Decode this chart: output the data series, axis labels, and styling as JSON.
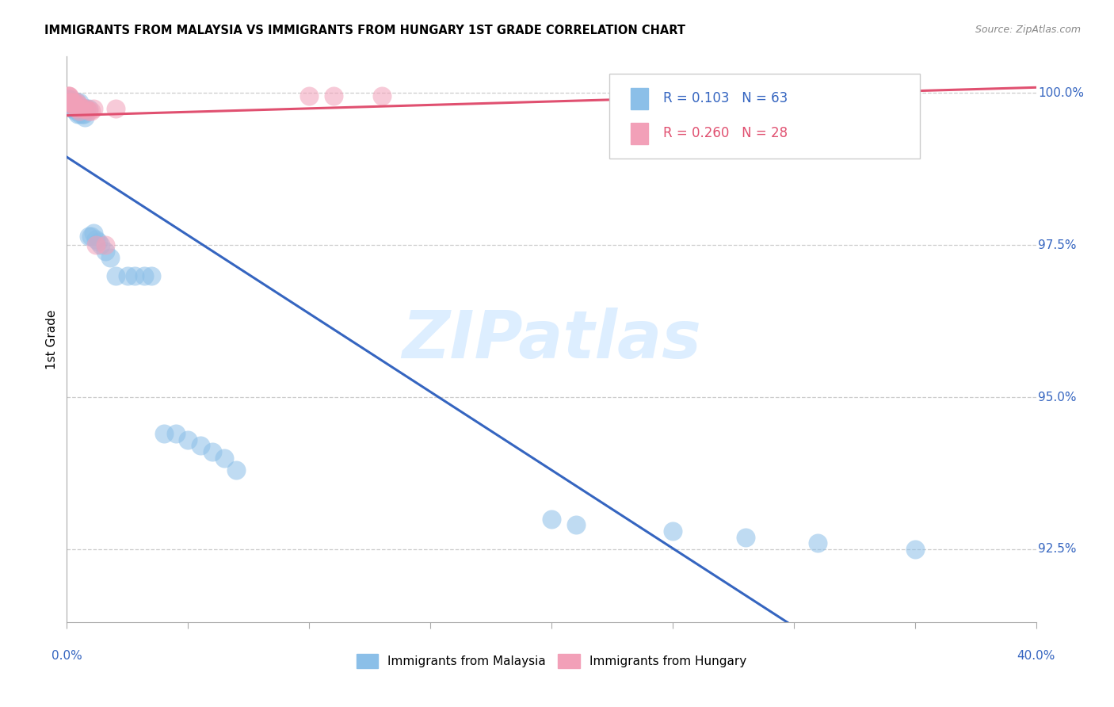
{
  "title": "IMMIGRANTS FROM MALAYSIA VS IMMIGRANTS FROM HUNGARY 1ST GRADE CORRELATION CHART",
  "source": "Source: ZipAtlas.com",
  "ylabel": "1st Grade",
  "y_tick_labels": [
    "100.0%",
    "97.5%",
    "95.0%",
    "92.5%"
  ],
  "y_tick_vals": [
    1.0,
    0.975,
    0.95,
    0.925
  ],
  "x_range": [
    0.0,
    0.4
  ],
  "y_range": [
    0.913,
    1.006
  ],
  "r_malaysia": "0.103",
  "n_malaysia": "63",
  "r_hungary": "0.260",
  "n_hungary": "28",
  "malaysia_scatter_color": "#8BBFE8",
  "malaysia_line_color": "#3565C0",
  "hungary_scatter_color": "#F2A0B8",
  "hungary_line_color": "#E05070",
  "watermark_color": "#DDEEFF",
  "grid_color": "#CCCCCC",
  "bg_color": "#FFFFFF",
  "malaysia_x": [
    0.0005,
    0.0007,
    0.001,
    0.001,
    0.0012,
    0.0013,
    0.0014,
    0.0015,
    0.0015,
    0.002,
    0.002,
    0.0022,
    0.0023,
    0.0025,
    0.0025,
    0.003,
    0.003,
    0.003,
    0.0032,
    0.0035,
    0.004,
    0.004,
    0.004,
    0.0042,
    0.0045,
    0.005,
    0.005,
    0.005,
    0.0055,
    0.006,
    0.006,
    0.0065,
    0.007,
    0.007,
    0.0075,
    0.008,
    0.009,
    0.009,
    0.01,
    0.011,
    0.012,
    0.013,
    0.014,
    0.016,
    0.018,
    0.02,
    0.025,
    0.028,
    0.032,
    0.035,
    0.04,
    0.045,
    0.05,
    0.055,
    0.06,
    0.065,
    0.07,
    0.2,
    0.21,
    0.25,
    0.28,
    0.31,
    0.35
  ],
  "malaysia_y": [
    0.999,
    0.999,
    0.999,
    0.9985,
    0.9985,
    0.9985,
    0.9985,
    0.9985,
    0.998,
    0.999,
    0.9985,
    0.998,
    0.998,
    0.9975,
    0.9975,
    0.9985,
    0.998,
    0.9975,
    0.9975,
    0.997,
    0.9985,
    0.998,
    0.9975,
    0.9975,
    0.9965,
    0.9985,
    0.9975,
    0.997,
    0.9965,
    0.9975,
    0.997,
    0.9965,
    0.9975,
    0.9965,
    0.996,
    0.9975,
    0.9975,
    0.9765,
    0.9765,
    0.977,
    0.976,
    0.9755,
    0.975,
    0.974,
    0.973,
    0.97,
    0.97,
    0.97,
    0.97,
    0.97,
    0.944,
    0.944,
    0.943,
    0.942,
    0.941,
    0.94,
    0.938,
    0.93,
    0.929,
    0.928,
    0.927,
    0.926,
    0.925
  ],
  "hungary_x": [
    0.0005,
    0.0007,
    0.001,
    0.001,
    0.0012,
    0.0015,
    0.002,
    0.002,
    0.0025,
    0.003,
    0.003,
    0.004,
    0.004,
    0.005,
    0.005,
    0.006,
    0.007,
    0.008,
    0.009,
    0.01,
    0.011,
    0.012,
    0.016,
    0.02,
    0.1,
    0.11,
    0.13,
    0.32
  ],
  "hungary_y": [
    0.9995,
    0.9995,
    0.9995,
    0.9985,
    0.9985,
    0.9985,
    0.9985,
    0.998,
    0.9985,
    0.9985,
    0.998,
    0.9985,
    0.9975,
    0.998,
    0.997,
    0.9975,
    0.9975,
    0.9975,
    0.997,
    0.997,
    0.9975,
    0.975,
    0.975,
    0.9975,
    0.9995,
    0.9995,
    0.9995,
    0.9995
  ]
}
